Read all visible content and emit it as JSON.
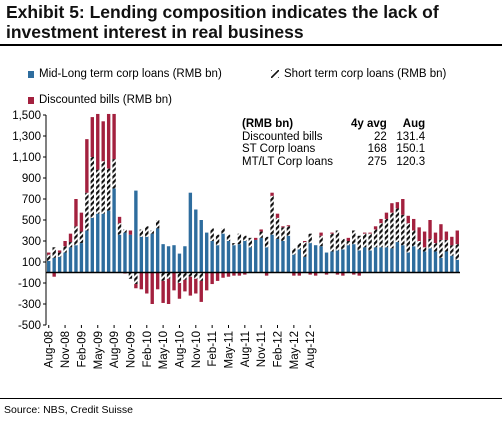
{
  "title_line1": "Exhibit 5: Lending composition indicates the lack of",
  "title_line2": "investment interest in real business",
  "source": "Source: NBS, Credit Suisse",
  "colors": {
    "mid_long": "#2e6d9e",
    "short_term": "#111111",
    "discounted": "#a3203e"
  },
  "stats_table": {
    "header": [
      "(RMB bn)",
      "4y avg",
      "Aug"
    ],
    "rows": [
      [
        "Discounted bills",
        "22",
        "131.4"
      ],
      [
        "ST Corp loans",
        "168",
        "150.1"
      ],
      [
        "MT/LT Corp loans",
        "275",
        "120.3"
      ]
    ]
  },
  "chart_data": {
    "type": "bar",
    "stacked": true,
    "ylim": [
      -500,
      1500
    ],
    "yticks": [
      -500,
      -300,
      -100,
      100,
      300,
      500,
      700,
      900,
      1100,
      1300,
      1500
    ],
    "ytick_labels": [
      "-500",
      "-300",
      "-100",
      "100",
      "300",
      "500",
      "700",
      "900",
      "1,100",
      "1,300",
      "1,500"
    ],
    "x_tick_labels": [
      "Aug-08",
      "Nov-08",
      "Feb-09",
      "May-09",
      "Aug-09",
      "Nov-09",
      "Feb-10",
      "May-10",
      "Aug-10",
      "Nov-10",
      "Feb-11",
      "May-11",
      "Aug-11",
      "Nov-11",
      "Feb-12",
      "May-12",
      "Aug-12"
    ],
    "legend_position": "top",
    "grid": false,
    "series": [
      {
        "name": "Mid-Long term corp loans (RMB bn)",
        "values": [
          110,
          140,
          150,
          190,
          240,
          260,
          280,
          400,
          520,
          560,
          560,
          590,
          800,
          360,
          380,
          360,
          780,
          340,
          340,
          370,
          420,
          270,
          250,
          260,
          180,
          250,
          760,
          600,
          500,
          380,
          300,
          260,
          370,
          300,
          260,
          270,
          300,
          240,
          310,
          330,
          240,
          360,
          320,
          300,
          350,
          170,
          220,
          150,
          280,
          260,
          250,
          190,
          200,
          210,
          220,
          260,
          270,
          210,
          240,
          210,
          240,
          240,
          240,
          230,
          290,
          260,
          190,
          250,
          220,
          200,
          230,
          200,
          140,
          200,
          160,
          120
        ]
      },
      {
        "name": "Short term corp loans (RMB bn)",
        "values": [
          60,
          100,
          40,
          60,
          50,
          180,
          110,
          360,
          580,
          420,
          500,
          400,
          280,
          110,
          30,
          -60,
          -110,
          70,
          100,
          30,
          80,
          -80,
          -60,
          0,
          -100,
          -70,
          -40,
          -60,
          -80,
          0,
          120,
          100,
          50,
          60,
          20,
          100,
          50,
          90,
          0,
          60,
          100,
          370,
          200,
          130,
          90,
          60,
          60,
          140,
          90,
          0,
          100,
          0,
          170,
          190,
          100,
          40,
          130,
          140,
          130,
          160,
          170,
          230,
          270,
          340,
          320,
          290,
          280,
          150,
          80,
          40,
          90,
          80,
          170,
          110,
          100,
          150
        ]
      },
      {
        "name": "Discounted bills (RMB bn)",
        "values": [
          20,
          -40,
          20,
          50,
          80,
          260,
          180,
          510,
          380,
          530,
          380,
          520,
          430,
          60,
          -10,
          40,
          -40,
          -160,
          -200,
          -300,
          -160,
          -210,
          -240,
          -170,
          -150,
          -110,
          -180,
          -140,
          -200,
          -170,
          -110,
          -80,
          -50,
          -40,
          -30,
          -30,
          -20,
          0,
          20,
          20,
          -30,
          30,
          40,
          10,
          10,
          -30,
          -30,
          10,
          -20,
          -30,
          30,
          -20,
          10,
          -20,
          -30,
          30,
          -20,
          -30,
          10,
          10,
          30,
          40,
          60,
          90,
          60,
          150,
          70,
          110,
          130,
          150,
          180,
          100,
          150,
          80,
          80,
          130
        ]
      }
    ]
  }
}
